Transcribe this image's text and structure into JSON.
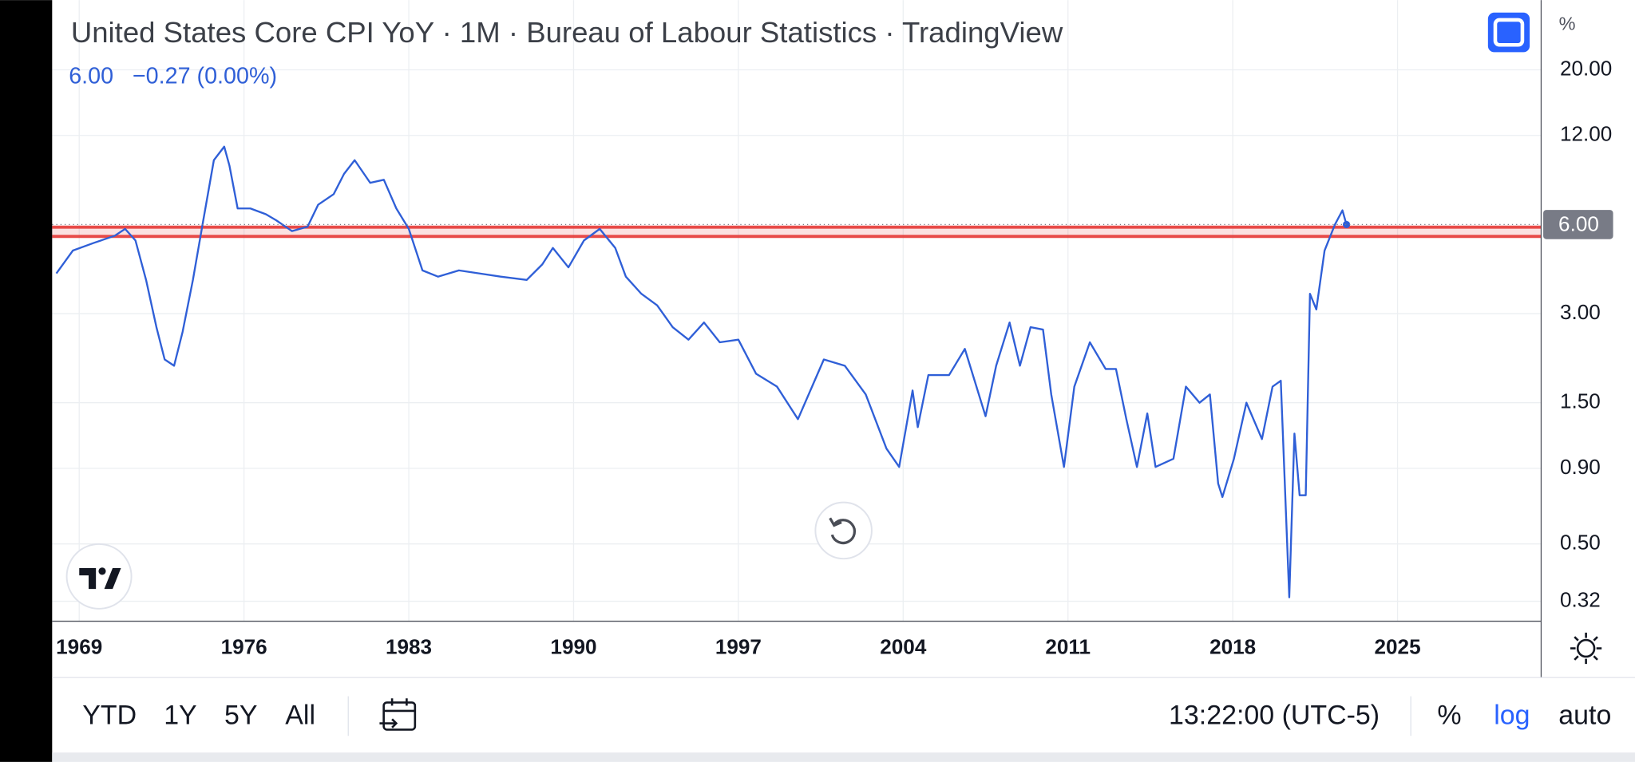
{
  "chart_data": {
    "type": "line",
    "title": "United States Core CPI YoY · 1M · Bureau of Labour Statistics · TradingView",
    "legend_value": "6.00",
    "legend_change": "−0.27 (0.00%)",
    "y_unit": "%",
    "log_scale": true,
    "grid": true,
    "color": "#2f5fd7",
    "x": [
      1968.03,
      1968.73,
      1969.62,
      1970.51,
      1970.95,
      1971.39,
      1971.84,
      1972.28,
      1972.63,
      1973.03,
      1973.39,
      1973.83,
      1974.27,
      1974.72,
      1975.16,
      1975.38,
      1975.73,
      1976.27,
      1976.93,
      1977.37,
      1978.04,
      1978.7,
      1979.15,
      1979.81,
      1980.25,
      1980.7,
      1981.36,
      1981.94,
      1982.47,
      1983.0,
      1983.58,
      1984.24,
      1985.13,
      1986.01,
      1986.9,
      1988.01,
      1988.67,
      1989.12,
      1989.78,
      1990.44,
      1991.11,
      1991.77,
      1992.22,
      1992.88,
      1993.55,
      1994.21,
      1994.88,
      1995.54,
      1996.21,
      1997.0,
      1997.75,
      1998.64,
      1999.53,
      2000.63,
      2001.52,
      2002.41,
      2003.29,
      2003.83,
      2004.4,
      2004.62,
      2005.07,
      2005.95,
      2006.62,
      2007.5,
      2007.95,
      2008.52,
      2008.96,
      2009.41,
      2009.94,
      2010.29,
      2010.83,
      2011.27,
      2011.93,
      2012.6,
      2013.04,
      2013.48,
      2013.93,
      2014.37,
      2014.72,
      2015.48,
      2016.01,
      2016.59,
      2017.03,
      2017.38,
      2017.56,
      2018.05,
      2018.58,
      2019.24,
      2019.69,
      2020.04,
      2020.4,
      2020.62,
      2020.84,
      2021.1,
      2021.28,
      2021.55,
      2021.9,
      2022.34,
      2022.66,
      2022.83
    ],
    "values": [
      4.1,
      4.9,
      5.2,
      5.5,
      5.8,
      5.3,
      3.9,
      2.7,
      2.1,
      2.0,
      2.6,
      3.9,
      6.2,
      9.9,
      11.0,
      9.5,
      6.8,
      6.8,
      6.5,
      6.2,
      5.7,
      5.9,
      7.0,
      7.6,
      8.9,
      9.9,
      8.3,
      8.5,
      6.8,
      5.8,
      4.2,
      4.0,
      4.2,
      4.1,
      4.0,
      3.9,
      4.4,
      5.0,
      4.3,
      5.3,
      5.8,
      5.0,
      4.0,
      3.5,
      3.2,
      2.7,
      2.45,
      2.8,
      2.4,
      2.45,
      1.88,
      1.7,
      1.32,
      2.1,
      2.0,
      1.6,
      1.05,
      0.91,
      1.65,
      1.24,
      1.86,
      1.86,
      2.28,
      1.35,
      2.0,
      2.8,
      2.0,
      2.7,
      2.65,
      1.6,
      0.91,
      1.7,
      2.4,
      1.95,
      1.95,
      1.32,
      0.91,
      1.38,
      0.91,
      0.97,
      1.7,
      1.5,
      1.6,
      0.8,
      0.72,
      0.97,
      1.5,
      1.13,
      1.7,
      1.78,
      0.33,
      1.18,
      0.73,
      0.73,
      3.5,
      3.1,
      4.9,
      6.0,
      6.7,
      6.0
    ],
    "xlim": [
      1967.85,
      2031.1
    ],
    "ylim": [
      0.274,
      34.4
    ],
    "xticks": [
      1969,
      1976,
      1983,
      1990,
      1997,
      2004,
      2011,
      2018,
      2025
    ],
    "yticks": [
      {
        "value": 20,
        "label": "20.00"
      },
      {
        "value": 12,
        "label": "12.00"
      },
      {
        "value": 3,
        "label": "3.00"
      },
      {
        "value": 1.5,
        "label": "1.50"
      },
      {
        "value": 0.9,
        "label": "0.90"
      },
      {
        "value": 0.5,
        "label": "0.50"
      },
      0.32
    ],
    "last_price": {
      "value": 6,
      "label": "6.00"
    },
    "hlines": [
      {
        "value": 5.88,
        "color": "#e53935"
      },
      {
        "value": 5.47,
        "color": "#e53935"
      }
    ]
  },
  "toolbar": {
    "ranges": [
      "YTD",
      "1Y",
      "5Y",
      "All"
    ],
    "time": "13:22:00 (UTC-5)",
    "options": [
      "%",
      "log",
      "auto"
    ],
    "active": "log"
  }
}
